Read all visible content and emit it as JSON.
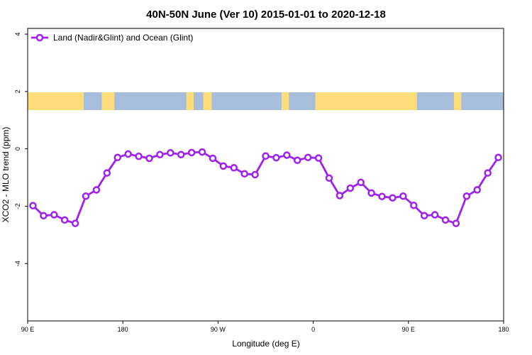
{
  "chart_data": {
    "type": "line",
    "title": "40N-50N June (Ver 10)   2015-01-01 to 2020-12-18",
    "xlabel": "Longitude (deg E)",
    "ylabel": "XCO2 - MLO trend (ppm)",
    "xlim": [
      90,
      540
    ],
    "ylim": [
      -6,
      4.2
    ],
    "x_ticks": [
      {
        "value": 90,
        "label": "90 E"
      },
      {
        "value": 180,
        "label": "180"
      },
      {
        "value": 270,
        "label": "90 W"
      },
      {
        "value": 360,
        "label": "0"
      },
      {
        "value": 450,
        "label": "90 E"
      },
      {
        "value": 540,
        "label": "180"
      }
    ],
    "y_ticks": [
      {
        "value": 4,
        "label": "4"
      },
      {
        "value": 2,
        "label": "2"
      },
      {
        "value": 0,
        "label": "0"
      },
      {
        "value": -2,
        "label": "-2"
      },
      {
        "value": -4,
        "label": "-4"
      }
    ],
    "grid": false,
    "legend": {
      "position": "top-left"
    },
    "series": [
      {
        "name": "Land (Nadir&Glint) and Ocean (Glint)",
        "color": "#a020f0",
        "x": [
          95,
          105,
          115,
          125,
          135,
          145,
          155,
          165,
          175,
          185,
          195,
          205,
          215,
          225,
          235,
          245,
          255,
          265,
          275,
          285,
          295,
          305,
          315,
          325,
          335,
          345,
          355,
          365,
          375,
          385,
          395,
          405,
          415,
          425,
          435,
          445,
          455,
          465,
          475,
          485,
          495,
          505,
          515,
          525,
          535
        ],
        "y": [
          -1.98,
          -2.33,
          -2.3,
          -2.48,
          -2.6,
          -1.65,
          -1.43,
          -0.84,
          -0.3,
          -0.18,
          -0.26,
          -0.33,
          -0.2,
          -0.14,
          -0.2,
          -0.13,
          -0.11,
          -0.33,
          -0.6,
          -0.66,
          -0.87,
          -0.9,
          -0.25,
          -0.31,
          -0.22,
          -0.4,
          -0.3,
          -0.32,
          -1.02,
          -1.63,
          -1.37,
          -1.17,
          -1.54,
          -1.66,
          -1.71,
          -1.65,
          -1.97,
          -2.33,
          -2.3,
          -2.48,
          -2.6,
          -1.65,
          -1.43,
          -0.84,
          -0.3
        ]
      }
    ]
  },
  "map_strip": {
    "ocean_color": "#a6bddb",
    "land_color": "#fddc7a"
  }
}
